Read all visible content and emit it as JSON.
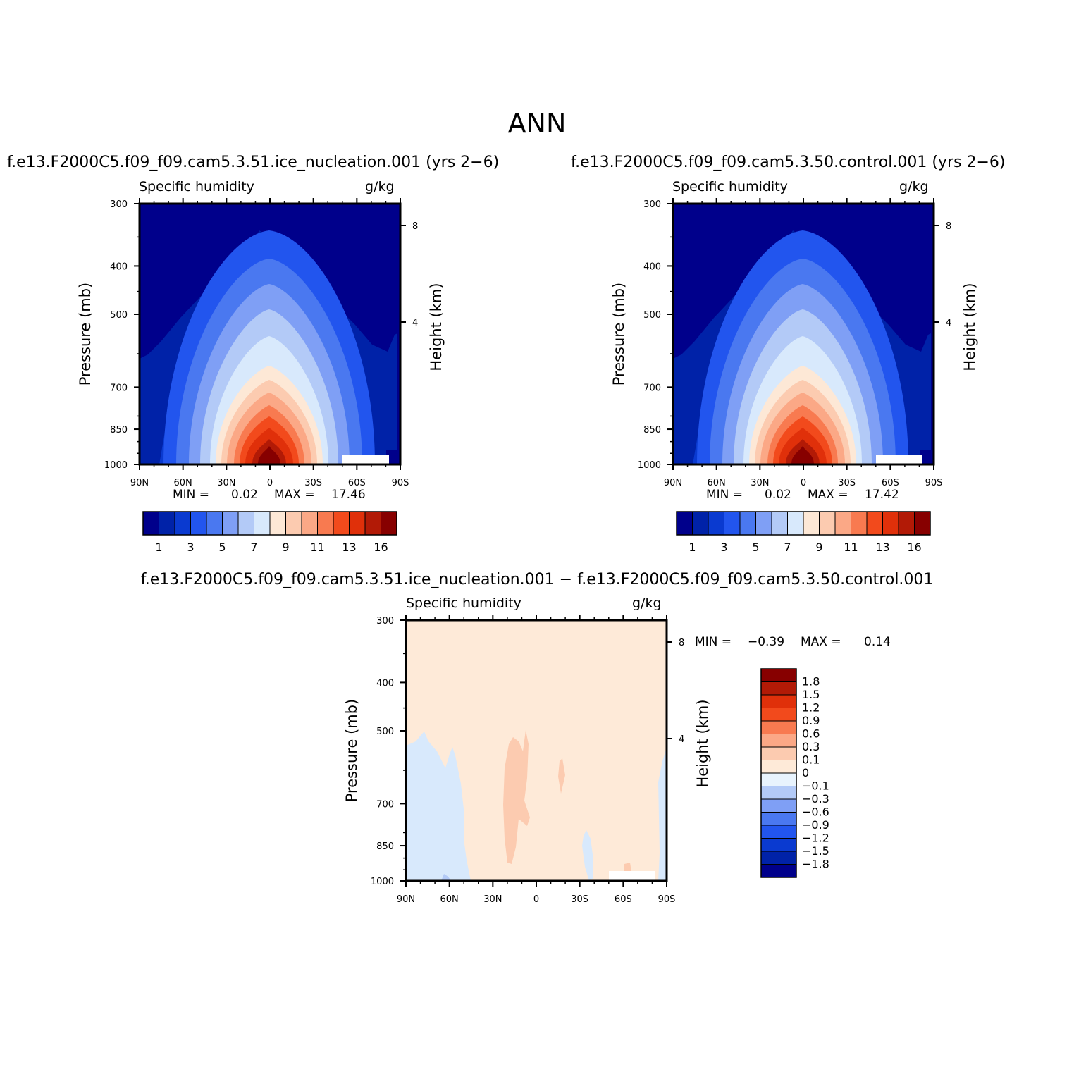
{
  "title": "ANN",
  "panels": {
    "left": {
      "run_title": "f.e13.F2000C5.f09_f09.cam5.3.51.ice_nucleation.001 (yrs 2−6)",
      "variable": "Specific humidity",
      "units": "g/kg",
      "min_label": "MIN =",
      "min_value": "0.02",
      "max_label": "MAX =",
      "max_value": "17.46"
    },
    "right": {
      "run_title": "f.e13.F2000C5.f09_f09.cam5.3.50.control.001 (yrs 2−6)",
      "variable": "Specific humidity",
      "units": "g/kg",
      "min_label": "MIN =",
      "min_value": "0.02",
      "max_label": "MAX =",
      "max_value": "17.42"
    },
    "diff": {
      "run_title": "f.e13.F2000C5.f09_f09.cam5.3.51.ice_nucleation.001 − f.e13.F2000C5.f09_f09.cam5.3.50.control.001",
      "variable": "Specific humidity",
      "units": "g/kg",
      "min_label": "MIN =",
      "min_value": "−0.39",
      "max_label": "MAX =",
      "max_value": "0.14"
    }
  },
  "axes": {
    "y_left_label": "Pressure (mb)",
    "y_right_label": "Height (km)",
    "pressure_ticks": [
      "300",
      "400",
      "500",
      "700",
      "850",
      "1000"
    ],
    "height_ticks": [
      "8",
      "4"
    ],
    "lat_ticks": [
      "90N",
      "60N",
      "30N",
      "0",
      "30S",
      "60S",
      "90S"
    ]
  },
  "colorbars": {
    "main_colors": [
      "#00008b",
      "#0022a8",
      "#0a3ad0",
      "#2255ee",
      "#4a78f0",
      "#7f9ff5",
      "#b3caf7",
      "#d8e9fc",
      "#fde8d6",
      "#fccbb0",
      "#fba886",
      "#f87a50",
      "#f24a1c",
      "#e0300a",
      "#b21a06",
      "#870000"
    ],
    "main_labels": [
      "1",
      "3",
      "5",
      "7",
      "9",
      "11",
      "13",
      "16"
    ],
    "diff_colors": [
      "#870000",
      "#b21a06",
      "#e0300a",
      "#f24a1c",
      "#f87a50",
      "#fba886",
      "#fccbb0",
      "#feead8",
      "#e8f3fd",
      "#b3caf7",
      "#7f9ff5",
      "#4a78f0",
      "#2255ee",
      "#0a3ad0",
      "#0022a8",
      "#00008b"
    ],
    "diff_labels": [
      "1.8",
      "1.5",
      "1.2",
      "0.9",
      "0.6",
      "0.3",
      "0.1",
      "0",
      "−0.1",
      "−0.3",
      "−0.6",
      "−0.9",
      "−1.2",
      "−1.5",
      "−1.8"
    ]
  },
  "chart_data": [
    {
      "type": "heatmap",
      "title": "f.e13.F2000C5.f09_f09.cam5.3.51.ice_nucleation.001 (yrs 2−6)",
      "variable": "Specific humidity",
      "units": "g/kg",
      "xlabel": "",
      "ylabel": "Pressure (mb)",
      "y2label": "Height (km)",
      "x_ticks": [
        "90N",
        "60N",
        "30N",
        "0",
        "30S",
        "60S",
        "90S"
      ],
      "y_ticks": [
        300,
        400,
        500,
        700,
        850,
        1000
      ],
      "y_scale": "log",
      "ylim": [
        1000,
        300
      ],
      "xlim": [
        90,
        -90
      ],
      "contour_levels": [
        1,
        2,
        3,
        4,
        5,
        6,
        7,
        8,
        9,
        10,
        11,
        12,
        13,
        14,
        16
      ],
      "min": 0.02,
      "max": 17.46
    },
    {
      "type": "heatmap",
      "title": "f.e13.F2000C5.f09_f09.cam5.3.50.control.001 (yrs 2−6)",
      "variable": "Specific humidity",
      "units": "g/kg",
      "xlabel": "",
      "ylabel": "Pressure (mb)",
      "y2label": "Height (km)",
      "x_ticks": [
        "90N",
        "60N",
        "30N",
        "0",
        "30S",
        "60S",
        "90S"
      ],
      "y_ticks": [
        300,
        400,
        500,
        700,
        850,
        1000
      ],
      "y_scale": "log",
      "ylim": [
        1000,
        300
      ],
      "xlim": [
        90,
        -90
      ],
      "contour_levels": [
        1,
        2,
        3,
        4,
        5,
        6,
        7,
        8,
        9,
        10,
        11,
        12,
        13,
        14,
        16
      ],
      "min": 0.02,
      "max": 17.42
    },
    {
      "type": "heatmap",
      "title": "f.e13.F2000C5.f09_f09.cam5.3.51.ice_nucleation.001 − f.e13.F2000C5.f09_f09.cam5.3.50.control.001",
      "variable": "Specific humidity",
      "units": "g/kg",
      "xlabel": "",
      "ylabel": "Pressure (mb)",
      "y2label": "Height (km)",
      "x_ticks": [
        "90N",
        "60N",
        "30N",
        "0",
        "30S",
        "60S",
        "90S"
      ],
      "y_ticks": [
        300,
        400,
        500,
        700,
        850,
        1000
      ],
      "y_scale": "log",
      "ylim": [
        1000,
        300
      ],
      "xlim": [
        90,
        -90
      ],
      "contour_levels": [
        -1.8,
        -1.5,
        -1.2,
        -0.9,
        -0.6,
        -0.3,
        -0.1,
        0,
        0.1,
        0.3,
        0.6,
        0.9,
        1.2,
        1.5,
        1.8
      ],
      "min": -0.39,
      "max": 0.14
    }
  ]
}
